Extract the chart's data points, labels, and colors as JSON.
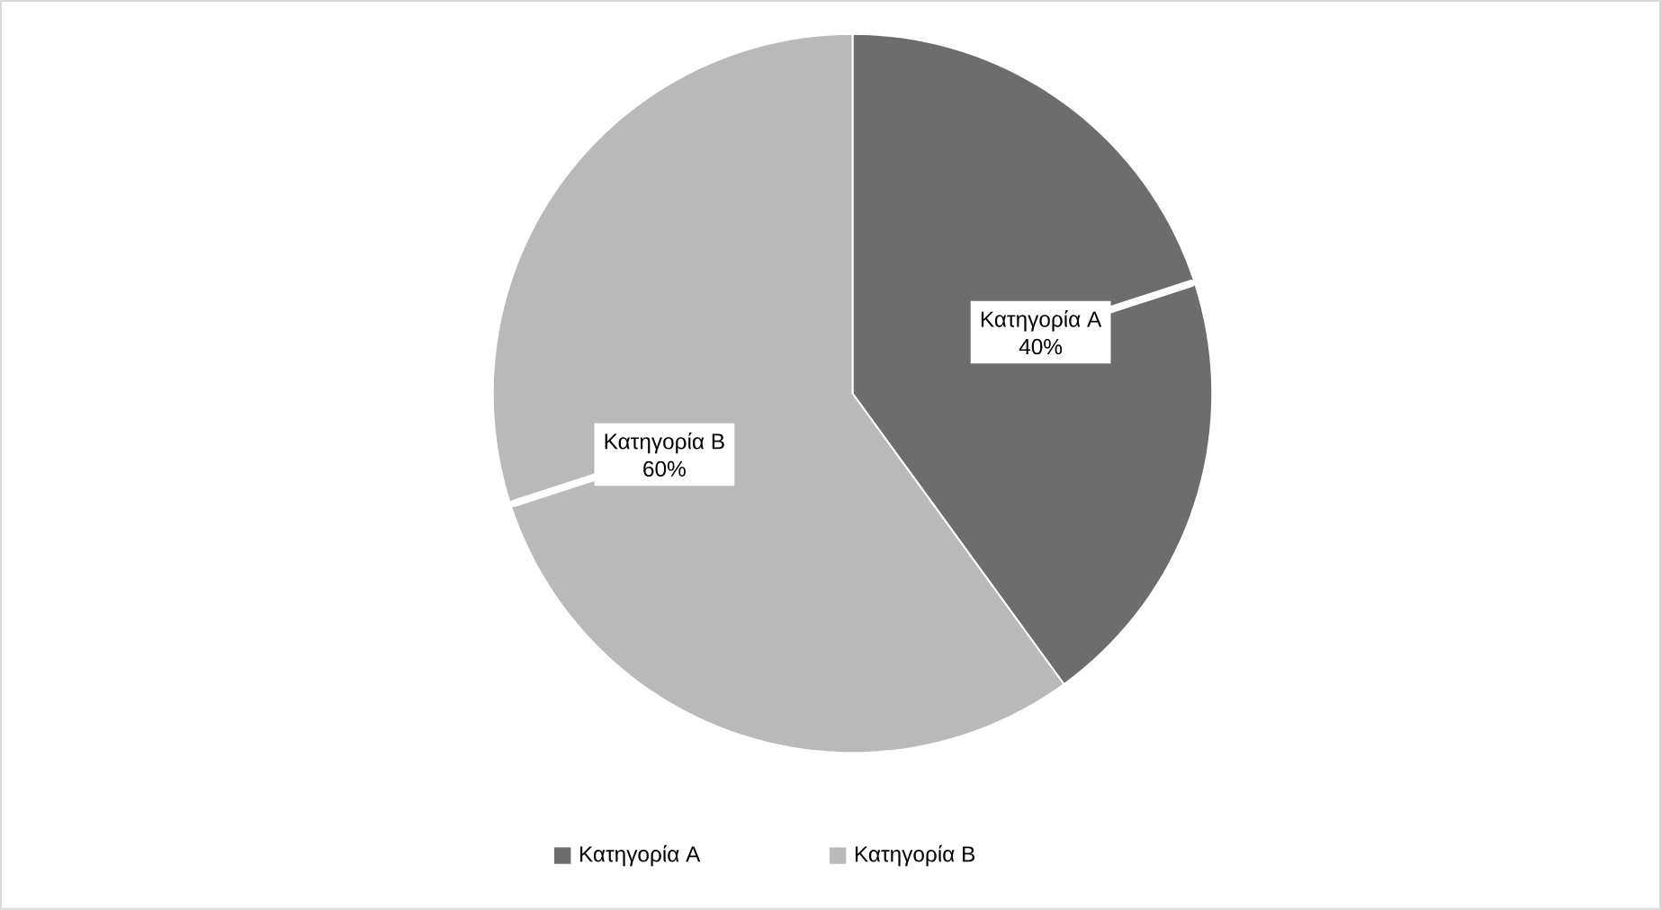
{
  "chart_data": {
    "type": "pie",
    "categories": [
      "Κατηγορία A",
      "Κατηγορία B"
    ],
    "values": [
      40,
      60
    ],
    "value_labels": [
      "40%",
      "60%"
    ],
    "colors": [
      "#6d6d6d",
      "#b9b9b9"
    ],
    "legend": "bottom"
  }
}
